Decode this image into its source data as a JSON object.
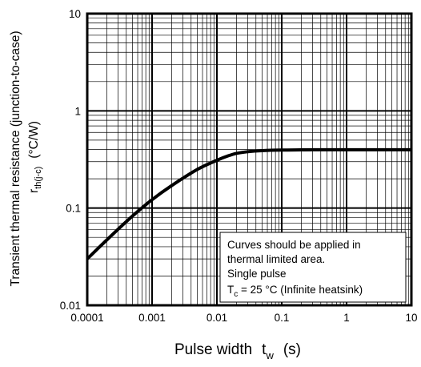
{
  "chart_data": {
    "type": "line",
    "x_scale": "log",
    "y_scale": "log",
    "xlim": [
      0.0001,
      10
    ],
    "ylim": [
      0.01,
      10
    ],
    "grid": true,
    "x_ticks": [
      "0.0001",
      "0.001",
      "0.01",
      "0.1",
      "1",
      "10"
    ],
    "y_ticks": [
      "0.01",
      "0.1",
      "1",
      "10"
    ],
    "xlabel": {
      "text": "Pulse width",
      "symbol": "t",
      "sub": "w",
      "unit": "(s)"
    },
    "ylabel": {
      "line1": "Transient thermal resistance (junction-to-case)",
      "symbol": "r",
      "sub": "th(j-c)",
      "unit": "(°C/W)"
    },
    "annotation": {
      "line1": "Curves should be applied in",
      "line2": "thermal limited area.",
      "line3": "Single pulse",
      "line4_symbol": "T",
      "line4_sub": "c",
      "line4_rest": " = 25 °C (Infinite heatsink)"
    },
    "series": [
      {
        "color": "#000000",
        "x": [
          0.0001,
          0.0002,
          0.0005,
          0.001,
          0.002,
          0.005,
          0.01,
          0.015,
          0.02,
          0.03,
          0.05,
          0.1,
          0.2,
          0.5,
          1,
          2,
          5,
          10
        ],
        "y": [
          0.03,
          0.047,
          0.083,
          0.122,
          0.17,
          0.25,
          0.31,
          0.345,
          0.365,
          0.38,
          0.39,
          0.395,
          0.397,
          0.398,
          0.398,
          0.398,
          0.398,
          0.398
        ]
      }
    ]
  }
}
